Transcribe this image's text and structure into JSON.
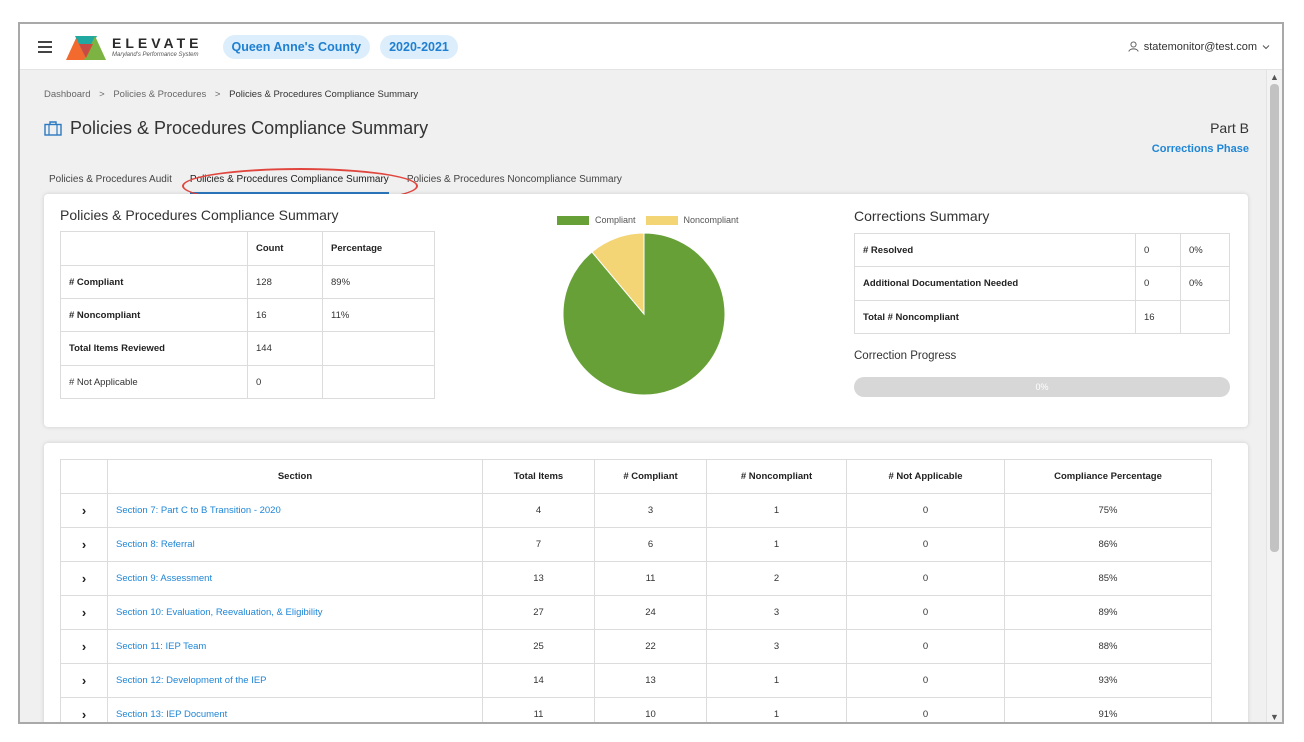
{
  "header": {
    "logo_title": "ELEVATE",
    "logo_subtitle": "Maryland's Performance System",
    "county": "Queen Anne's County",
    "year": "2020-2021",
    "user_email": "statemonitor@test.com"
  },
  "breadcrumb": [
    "Dashboard",
    "Policies & Procedures",
    "Policies & Procedures Compliance Summary"
  ],
  "breadcrumb_sep": ">",
  "page": {
    "title": "Policies & Procedures Compliance Summary",
    "part": "Part B",
    "phase": "Corrections Phase"
  },
  "tabs": [
    {
      "label": "Policies & Procedures Audit",
      "active": false
    },
    {
      "label": "Policies & Procedures Compliance Summary",
      "active": true
    },
    {
      "label": "Policies & Procedures Noncompliance Summary",
      "active": false
    }
  ],
  "compliance_summary": {
    "title": "Policies & Procedures Compliance Summary",
    "headers": [
      "",
      "Count",
      "Percentage"
    ],
    "rows": [
      {
        "label": "# Compliant",
        "count": "128",
        "pct": "89%"
      },
      {
        "label": "# Noncompliant",
        "count": "16",
        "pct": "11%"
      },
      {
        "label": "Total Items Reviewed",
        "count": "144",
        "pct": ""
      },
      {
        "label": "# Not Applicable",
        "count": "0",
        "pct": ""
      }
    ]
  },
  "chart_data": {
    "type": "pie",
    "categories": [
      "Compliant",
      "Noncompliant"
    ],
    "values": [
      128,
      16
    ],
    "colors": [
      "#68a038",
      "#f3d576"
    ],
    "legend": "top"
  },
  "corrections": {
    "title": "Corrections Summary",
    "rows": [
      {
        "label": "# Resolved",
        "count": "0",
        "pct": "0%"
      },
      {
        "label": "Additional Documentation Needed",
        "count": "0",
        "pct": "0%"
      },
      {
        "label": "Total # Noncompliant",
        "count": "16",
        "pct": ""
      }
    ],
    "progress_label": "Correction Progress",
    "progress_value": 0,
    "progress_text": "0%"
  },
  "sections_table": {
    "headers": [
      "",
      "Section",
      "Total Items",
      "# Compliant",
      "# Noncompliant",
      "# Not Applicable",
      "Compliance Percentage"
    ],
    "rows": [
      {
        "section": "Section 7: Part C to B Transition - 2020",
        "total": "4",
        "compliant": "3",
        "noncompliant": "1",
        "na": "0",
        "pct": "75%"
      },
      {
        "section": "Section 8: Referral",
        "total": "7",
        "compliant": "6",
        "noncompliant": "1",
        "na": "0",
        "pct": "86%"
      },
      {
        "section": "Section 9: Assessment",
        "total": "13",
        "compliant": "11",
        "noncompliant": "2",
        "na": "0",
        "pct": "85%"
      },
      {
        "section": "Section 10: Evaluation, Reevaluation, & Eligibility",
        "total": "27",
        "compliant": "24",
        "noncompliant": "3",
        "na": "0",
        "pct": "89%"
      },
      {
        "section": "Section 11: IEP Team",
        "total": "25",
        "compliant": "22",
        "noncompliant": "3",
        "na": "0",
        "pct": "88%"
      },
      {
        "section": "Section 12: Development of the IEP",
        "total": "14",
        "compliant": "13",
        "noncompliant": "1",
        "na": "0",
        "pct": "93%"
      },
      {
        "section": "Section 13: IEP Document",
        "total": "11",
        "compliant": "10",
        "noncompliant": "1",
        "na": "0",
        "pct": "91%"
      }
    ]
  },
  "colors": {
    "accent": "#1f86d6",
    "pill_bg": "#dceefb",
    "highlight": "#e0463e"
  }
}
